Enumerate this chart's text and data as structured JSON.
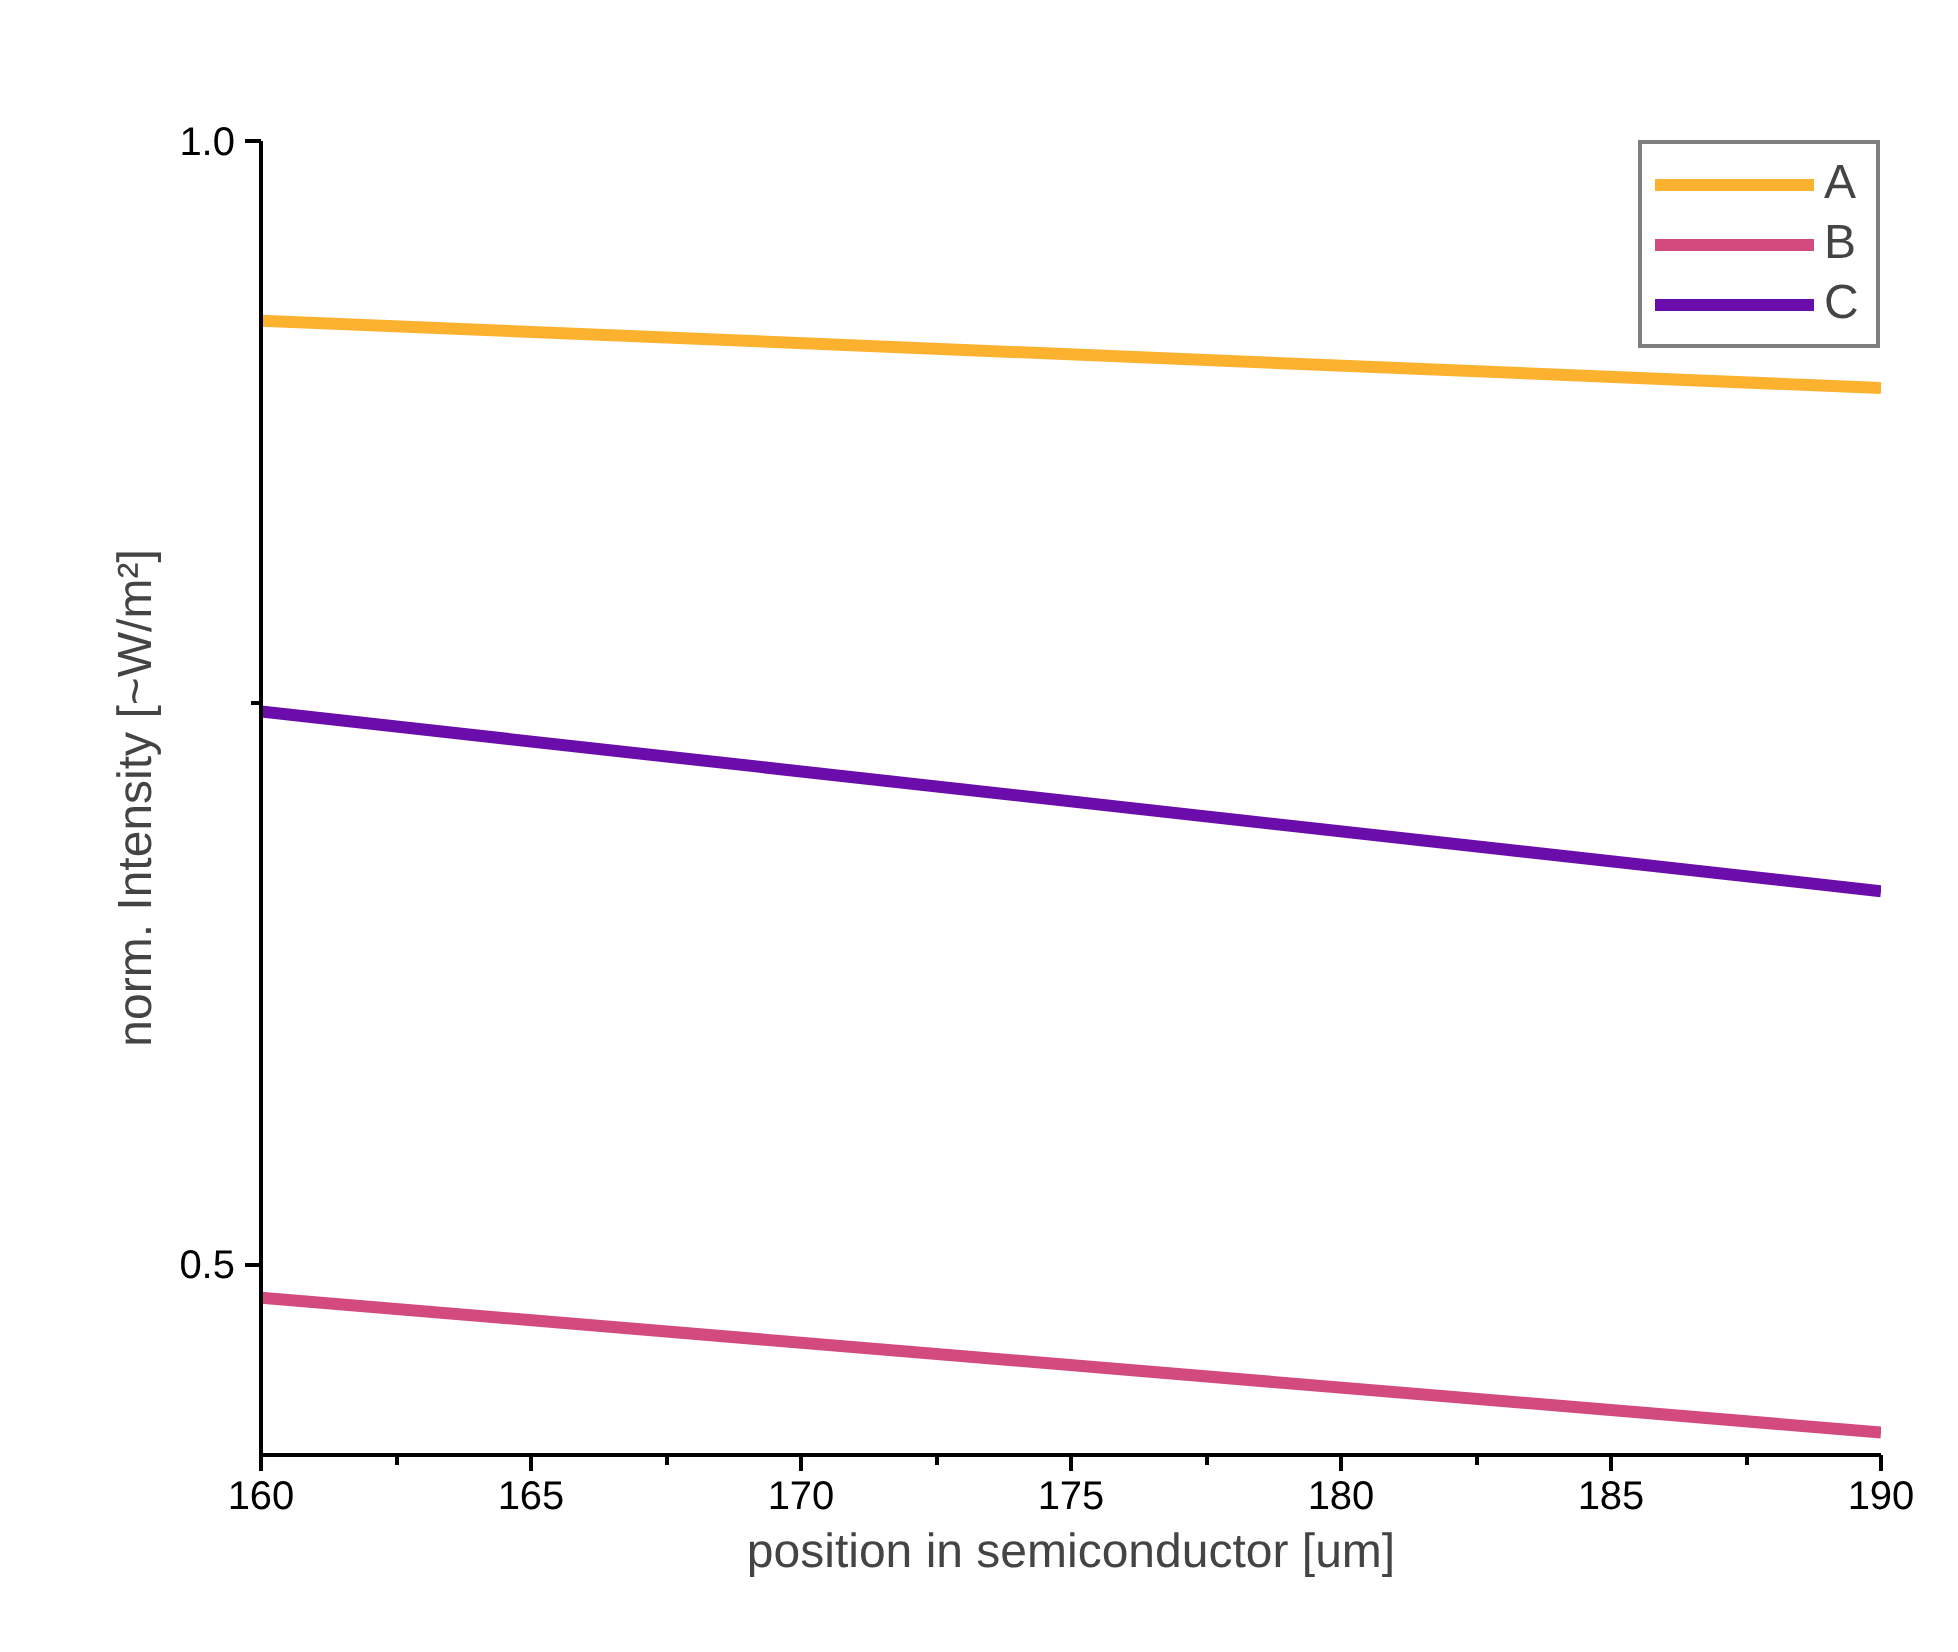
{
  "chart_data": {
    "type": "line",
    "xlabel": "position in semiconductor [um]",
    "ylabel": "norm. Intensity [~W/m²]",
    "x": [
      160,
      190
    ],
    "series": [
      {
        "name": "A",
        "color": "#fdb22f",
        "values": [
          0.92,
          0.89
        ]
      },
      {
        "name": "B",
        "color": "#d24a7e",
        "values": [
          0.485,
          0.425
        ]
      },
      {
        "name": "C",
        "color": "#6a0dab",
        "values": [
          0.746,
          0.666
        ]
      }
    ],
    "xlim": [
      160,
      190
    ],
    "ylim": [
      0.415,
      1.0
    ],
    "xticks": [
      160,
      {
        "value": 162.5,
        "label": null
      },
      165,
      {
        "value": 167.5,
        "label": null
      },
      170,
      {
        "value": 172.5,
        "label": null
      },
      175,
      {
        "value": 177.5,
        "label": null
      },
      180,
      {
        "value": 182.5,
        "label": null
      },
      185,
      {
        "value": 187.5,
        "label": null
      },
      190
    ],
    "yticks": [
      {
        "value": 0.5,
        "label": "0.5"
      },
      {
        "value": 0.75,
        "label": null
      },
      {
        "value": 1.0,
        "label": "1.0"
      }
    ],
    "grid": false,
    "legend": "top right",
    "marker": "none",
    "line_style": "solid"
  }
}
